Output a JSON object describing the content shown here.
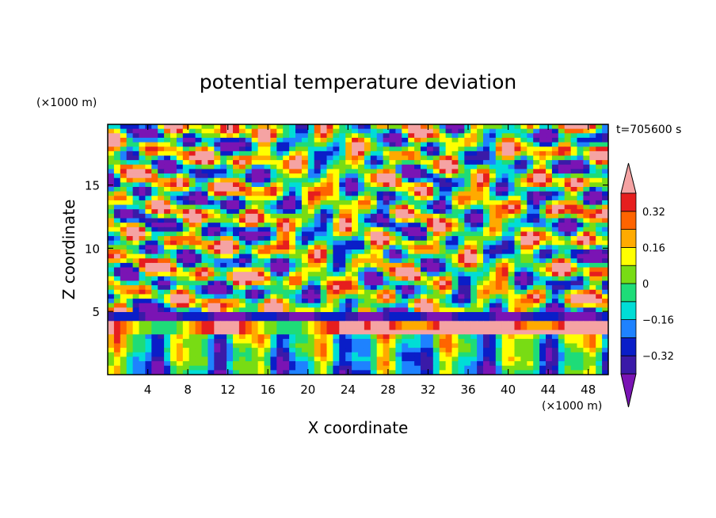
{
  "chart_data": {
    "type": "heatmap",
    "title": "potential temperature deviation",
    "xlabel": "X coordinate",
    "ylabel": "Z coordinate",
    "x_unit": "(×1000 m)",
    "y_unit": "(×1000 m)",
    "time_label": "t=705600 s",
    "xlim": [
      0,
      50
    ],
    "ylim": [
      0,
      19.8
    ],
    "x_ticks": [
      4,
      8,
      12,
      16,
      20,
      24,
      28,
      32,
      36,
      40,
      44,
      48
    ],
    "y_ticks": [
      5,
      10,
      15
    ],
    "colorbar": {
      "levels": [
        -0.4,
        -0.32,
        -0.24,
        -0.16,
        -0.08,
        0,
        0.08,
        0.16,
        0.24,
        0.32,
        0.4
      ],
      "tick_labels": [
        "0.32",
        "0.16",
        "0",
        "-0.16",
        "-0.32"
      ],
      "tick_values": [
        0.32,
        0.16,
        0,
        -0.16,
        -0.32
      ],
      "colors": [
        "#7a14b4",
        "#3a1aa8",
        "#0a1ec8",
        "#1e82ff",
        "#00ddd6",
        "#1edc78",
        "#78dc14",
        "#ffff00",
        "#ffaa00",
        "#ff6400",
        "#e61e1e",
        "#f5a3a3"
      ]
    }
  }
}
